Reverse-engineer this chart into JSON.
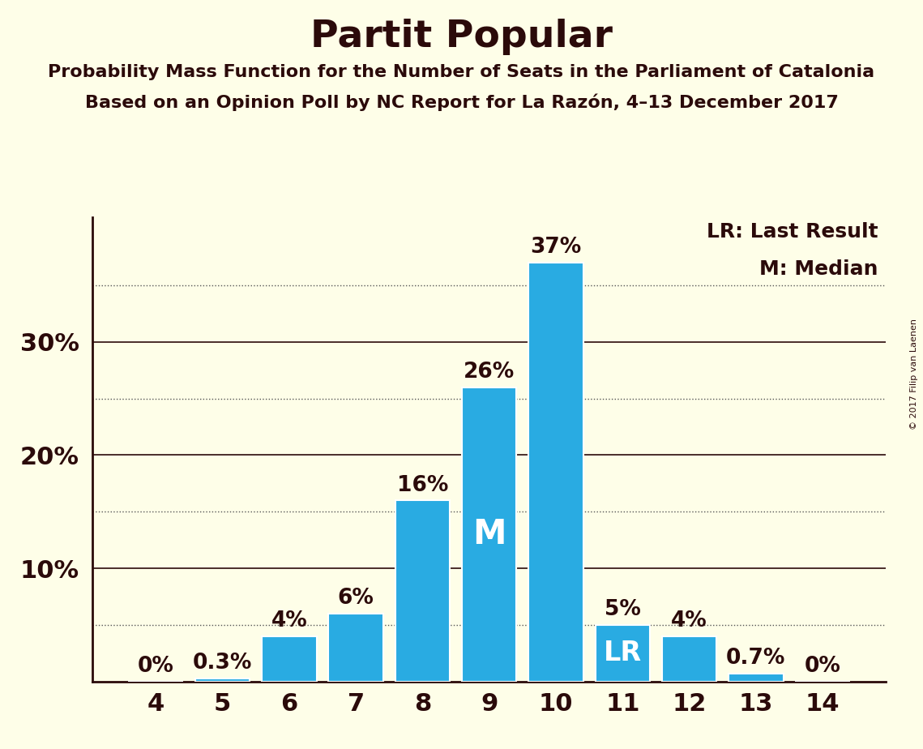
{
  "title": "Partit Popular",
  "subtitle1": "Probability Mass Function for the Number of Seats in the Parliament of Catalonia",
  "subtitle2": "Based on an Opinion Poll by NC Report for La Razón, 4–13 December 2017",
  "copyright": "© 2017 Filip van Laenen",
  "categories": [
    4,
    5,
    6,
    7,
    8,
    9,
    10,
    11,
    12,
    13,
    14
  ],
  "values": [
    0.0,
    0.3,
    4.0,
    6.0,
    16.0,
    26.0,
    37.0,
    5.0,
    4.0,
    0.7,
    0.0
  ],
  "labels": [
    "0%",
    "0.3%",
    "4%",
    "6%",
    "16%",
    "26%",
    "37%",
    "5%",
    "4%",
    "0.7%",
    "0%"
  ],
  "bar_color": "#29ABE2",
  "background_color": "#FEFEE8",
  "text_color": "#2B0A0A",
  "title_fontsize": 34,
  "subtitle_fontsize": 16,
  "label_fontsize": 19,
  "tick_fontsize": 22,
  "ylabel_ticks": [
    0,
    10,
    20,
    30
  ],
  "ylabel_dotted": [
    5,
    15,
    25,
    35
  ],
  "ylim": [
    0,
    41
  ],
  "legend_text_lr": "LR: Last Result",
  "legend_text_m": "M: Median",
  "median_bar": 9,
  "lr_bar": 11,
  "median_label": "M",
  "lr_label": "LR",
  "median_label_fontsize": 30,
  "lr_label_fontsize": 24
}
